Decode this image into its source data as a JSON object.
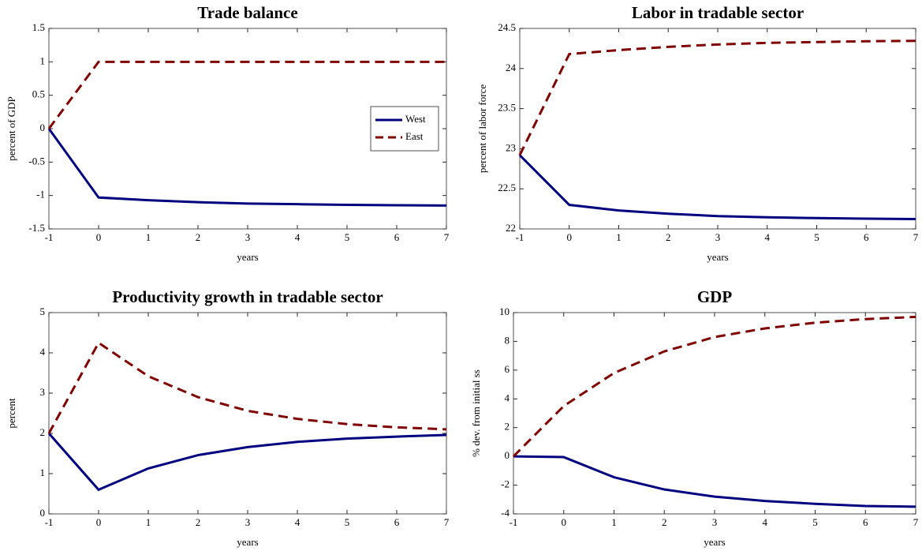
{
  "chart_data": [
    {
      "type": "line",
      "title": "Trade balance",
      "xlabel": "years",
      "ylabel": "percent of GDP",
      "x": [
        -1,
        0,
        1,
        2,
        3,
        4,
        5,
        6,
        7
      ],
      "xlim": [
        -1,
        7
      ],
      "xticks": [
        -1,
        0,
        1,
        2,
        3,
        4,
        5,
        6,
        7
      ],
      "ylim": [
        -1.5,
        1.5
      ],
      "yticks": [
        -1.5,
        -1,
        -0.5,
        0,
        0.5,
        1,
        1.5
      ],
      "legend": "east",
      "series": [
        {
          "name": "West",
          "color": "#00007f",
          "linestyle": "solid",
          "values": [
            0,
            -1.03,
            -1.07,
            -1.1,
            -1.12,
            -1.13,
            -1.14,
            -1.145,
            -1.15
          ]
        },
        {
          "name": "East",
          "color": "#7f0000",
          "linestyle": "dashed",
          "values": [
            0,
            1,
            1,
            1,
            1,
            1,
            1,
            1,
            1
          ]
        }
      ]
    },
    {
      "type": "line",
      "title": "Labor in tradable sector",
      "xlabel": "years",
      "ylabel": "percent of labor force",
      "x": [
        -1,
        0,
        1,
        2,
        3,
        4,
        5,
        6,
        7
      ],
      "xlim": [
        -1,
        7
      ],
      "xticks": [
        -1,
        0,
        1,
        2,
        3,
        4,
        5,
        6,
        7
      ],
      "ylim": [
        22,
        24.5
      ],
      "yticks": [
        22,
        22.5,
        23,
        23.5,
        24,
        24.5
      ],
      "series": [
        {
          "color": "#00007f",
          "linestyle": "solid",
          "values": [
            22.92,
            22.3,
            22.23,
            22.19,
            22.16,
            22.145,
            22.135,
            22.128,
            22.123
          ]
        },
        {
          "color": "#7f0000",
          "linestyle": "dashed",
          "values": [
            22.92,
            24.18,
            24.23,
            24.27,
            24.3,
            24.32,
            24.33,
            24.34,
            24.345
          ]
        }
      ]
    },
    {
      "type": "line",
      "title": "Productivity growth in tradable sector",
      "xlabel": "years",
      "ylabel": "percent",
      "x": [
        -1,
        0,
        1,
        2,
        3,
        4,
        5,
        6,
        7
      ],
      "xlim": [
        -1,
        7
      ],
      "xticks": [
        -1,
        0,
        1,
        2,
        3,
        4,
        5,
        6,
        7
      ],
      "ylim": [
        0,
        5
      ],
      "yticks": [
        0,
        1,
        2,
        3,
        4,
        5
      ],
      "series": [
        {
          "color": "#00007f",
          "linestyle": "solid",
          "values": [
            2,
            0.6,
            1.13,
            1.46,
            1.66,
            1.79,
            1.87,
            1.92,
            1.96
          ]
        },
        {
          "color": "#7f0000",
          "linestyle": "dashed",
          "values": [
            2,
            4.25,
            3.42,
            2.9,
            2.56,
            2.36,
            2.23,
            2.15,
            2.1
          ]
        }
      ]
    },
    {
      "type": "line",
      "title": "GDP",
      "xlabel": "years",
      "ylabel": "% dev. from initial ss",
      "x": [
        -1,
        0,
        1,
        2,
        3,
        4,
        5,
        6,
        7
      ],
      "xlim": [
        -1,
        7
      ],
      "xticks": [
        -1,
        0,
        1,
        2,
        3,
        4,
        5,
        6,
        7
      ],
      "ylim": [
        -4,
        10
      ],
      "yticks": [
        -4,
        -2,
        0,
        2,
        4,
        6,
        8,
        10
      ],
      "series": [
        {
          "color": "#00007f",
          "linestyle": "solid",
          "values": [
            0,
            -0.05,
            -1.45,
            -2.3,
            -2.8,
            -3.1,
            -3.3,
            -3.45,
            -3.5
          ]
        },
        {
          "color": "#7f0000",
          "linestyle": "dashed",
          "values": [
            0,
            3.5,
            5.8,
            7.3,
            8.3,
            8.9,
            9.3,
            9.55,
            9.7
          ]
        }
      ]
    }
  ]
}
